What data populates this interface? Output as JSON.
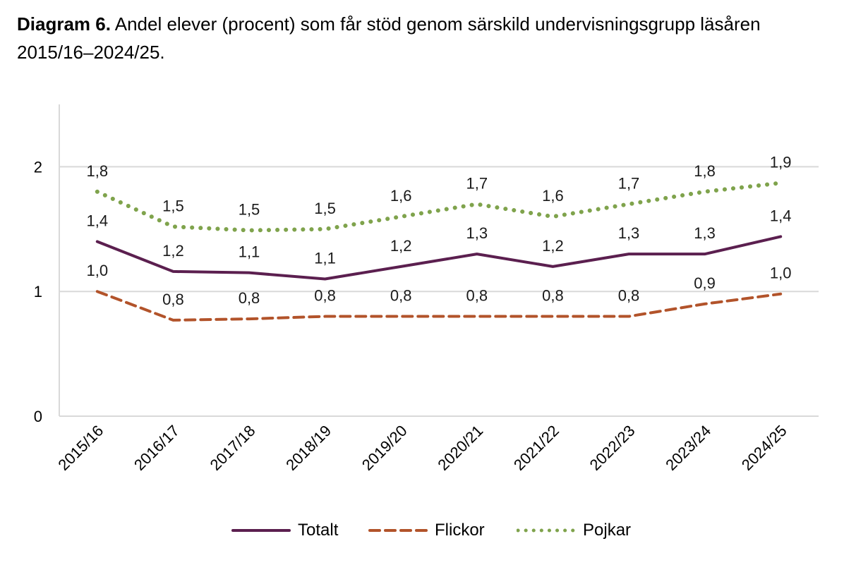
{
  "title": {
    "bold": "Diagram 6.",
    "text": " Andel elever (procent) som får stöd genom särskild undervisningsgrupp läsåren 2015/16–2024/25."
  },
  "chart_data": {
    "type": "line",
    "categories": [
      "2015/16",
      "2016/17",
      "2017/18",
      "2018/19",
      "2019/20",
      "2020/21",
      "2021/22",
      "2022/23",
      "2023/24",
      "2024/25"
    ],
    "ylim": [
      0,
      2.5
    ],
    "yticks": [
      0,
      1,
      2
    ],
    "ytick_labels": [
      "0",
      "1",
      "2"
    ],
    "grid": true,
    "legend_position": "bottom",
    "series": [
      {
        "name": "Totalt",
        "color": "#5b1f4f",
        "style": "solid",
        "values": [
          1.4,
          1.16,
          1.15,
          1.1,
          1.2,
          1.3,
          1.2,
          1.3,
          1.3,
          1.44
        ],
        "labels": [
          "1,4",
          "1,2",
          "1,1",
          "1,1",
          "1,2",
          "1,3",
          "1,2",
          "1,3",
          "1,3",
          "1,4"
        ]
      },
      {
        "name": "Flickor",
        "color": "#b2532a",
        "style": "dashed",
        "values": [
          1.0,
          0.77,
          0.78,
          0.8,
          0.8,
          0.8,
          0.8,
          0.8,
          0.9,
          0.98
        ],
        "labels": [
          "1,0",
          "0,8",
          "0,8",
          "0,8",
          "0,8",
          "0,8",
          "0,8",
          "0,8",
          "0,9",
          "1,0"
        ]
      },
      {
        "name": "Pojkar",
        "color": "#7fa34c",
        "style": "dotted",
        "values": [
          1.8,
          1.52,
          1.49,
          1.5,
          1.6,
          1.7,
          1.6,
          1.7,
          1.8,
          1.87
        ],
        "labels": [
          "1,8",
          "1,5",
          "1,5",
          "1,5",
          "1,6",
          "1,7",
          "1,6",
          "1,7",
          "1,8",
          "1,9"
        ]
      }
    ]
  }
}
